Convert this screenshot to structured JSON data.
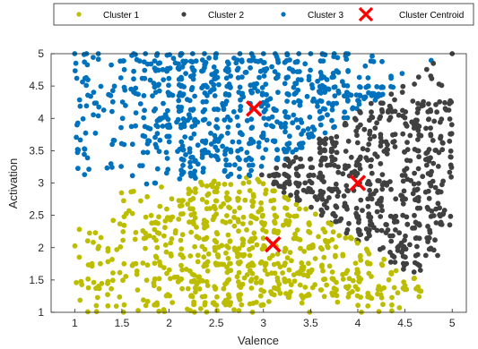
{
  "chart_data": {
    "type": "scatter",
    "title": "",
    "xlabel": "Valence",
    "ylabel": "Activation",
    "xlim": [
      0.75,
      5.15
    ],
    "ylim": [
      1,
      5
    ],
    "xticks": [
      "1",
      "1.5",
      "2",
      "2.5",
      "3",
      "3.5",
      "4",
      "4.5",
      "5"
    ],
    "yticks": [
      "1",
      "1.5",
      "2",
      "2.5",
      "3",
      "3.5",
      "4",
      "4.5",
      "5"
    ],
    "grid": false,
    "legend_position": "top",
    "series": [
      {
        "name": "Cluster 1",
        "color": "#bdbd00",
        "marker": "dot",
        "region": "low activation (about 1 to 3) and valence up to about 4.8, below the diagonal boundary",
        "centroid_region": [
          3.1,
          2.05
        ]
      },
      {
        "name": "Cluster 2",
        "color": "#404040",
        "marker": "dot",
        "region": "high valence (about 3 to 5) and mid activation (about 2 to 4.5)",
        "centroid_region": [
          4.0,
          3.0
        ]
      },
      {
        "name": "Cluster 3",
        "color": "#0072bd",
        "marker": "dot",
        "region": "high activation (about 3 to 5) and valence 1 to about 3.8",
        "centroid_region": [
          2.9,
          4.15
        ]
      }
    ],
    "centroids": {
      "name": "Cluster Centroid",
      "color": "#ff0000",
      "marker": "x",
      "points": [
        {
          "x": 3.1,
          "y": 2.05
        },
        {
          "x": 4.0,
          "y": 3.0
        },
        {
          "x": 2.9,
          "y": 4.15
        }
      ]
    }
  }
}
